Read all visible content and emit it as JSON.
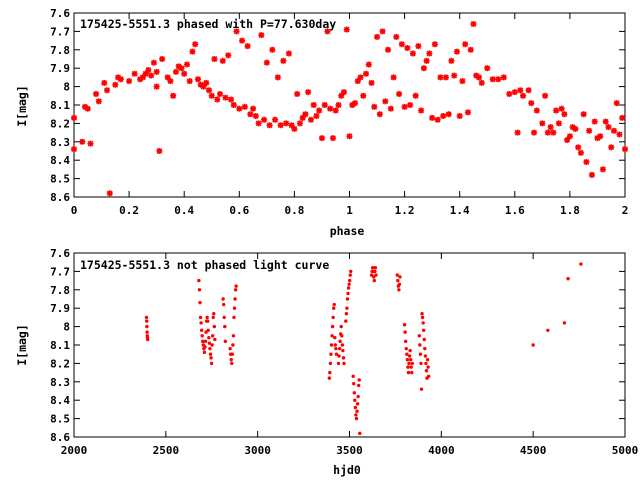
{
  "colors": {
    "points": "#ff0000",
    "axes": "#000000",
    "background": "#ffffff"
  },
  "chart_data": [
    {
      "type": "scatter",
      "title": "175425-5551.3 phased with P=77.630day",
      "xlabel": "phase",
      "ylabel": "I[mag]",
      "xlim": [
        0,
        2
      ],
      "ylim": [
        7.6,
        8.6
      ],
      "y_inverted": true,
      "grid": false,
      "marker": "star",
      "xticks": [
        "0",
        "0.2",
        "0.4",
        "0.6",
        "0.8",
        "1",
        "1.2",
        "1.4",
        "1.6",
        "1.8",
        "2"
      ],
      "yticks": [
        "7.6",
        "7.7",
        "7.8",
        "7.9",
        "8",
        "8.1",
        "8.2",
        "8.3",
        "8.4",
        "8.5",
        "8.6"
      ],
      "points": [
        [
          0.0,
          8.17
        ],
        [
          0.0,
          8.34
        ],
        [
          0.03,
          8.3
        ],
        [
          0.04,
          8.11
        ],
        [
          0.05,
          8.12
        ],
        [
          0.06,
          8.31
        ],
        [
          0.08,
          8.04
        ],
        [
          0.09,
          8.08
        ],
        [
          0.11,
          7.98
        ],
        [
          0.12,
          8.02
        ],
        [
          0.13,
          8.58
        ],
        [
          0.15,
          7.99
        ],
        [
          0.16,
          7.95
        ],
        [
          0.17,
          7.96
        ],
        [
          0.2,
          7.97
        ],
        [
          0.22,
          7.93
        ],
        [
          0.24,
          7.96
        ],
        [
          0.25,
          7.95
        ],
        [
          0.26,
          7.93
        ],
        [
          0.27,
          7.91
        ],
        [
          0.28,
          7.94
        ],
        [
          0.29,
          7.87
        ],
        [
          0.3,
          7.92
        ],
        [
          0.3,
          8.0
        ],
        [
          0.31,
          8.35
        ],
        [
          0.32,
          7.85
        ],
        [
          0.34,
          7.95
        ],
        [
          0.35,
          7.97
        ],
        [
          0.36,
          8.05
        ],
        [
          0.37,
          7.92
        ],
        [
          0.38,
          7.89
        ],
        [
          0.39,
          7.9
        ],
        [
          0.4,
          7.93
        ],
        [
          0.41,
          7.88
        ],
        [
          0.42,
          7.97
        ],
        [
          0.43,
          7.81
        ],
        [
          0.44,
          7.77
        ],
        [
          0.45,
          7.96
        ],
        [
          0.46,
          7.99
        ],
        [
          0.47,
          8.0
        ],
        [
          0.48,
          7.98
        ],
        [
          0.49,
          8.02
        ],
        [
          0.5,
          8.05
        ],
        [
          0.51,
          7.85
        ],
        [
          0.52,
          8.07
        ],
        [
          0.53,
          8.04
        ],
        [
          0.54,
          7.86
        ],
        [
          0.55,
          8.06
        ],
        [
          0.56,
          7.83
        ],
        [
          0.57,
          8.07
        ],
        [
          0.58,
          8.1
        ],
        [
          0.59,
          7.7
        ],
        [
          0.6,
          8.12
        ],
        [
          0.61,
          7.75
        ],
        [
          0.62,
          8.11
        ],
        [
          0.63,
          7.78
        ],
        [
          0.64,
          8.15
        ],
        [
          0.65,
          8.12
        ],
        [
          0.66,
          8.16
        ],
        [
          0.67,
          8.2
        ],
        [
          0.68,
          7.72
        ],
        [
          0.69,
          8.18
        ],
        [
          0.7,
          7.87
        ],
        [
          0.71,
          8.21
        ],
        [
          0.72,
          7.8
        ],
        [
          0.73,
          8.18
        ],
        [
          0.74,
          7.95
        ],
        [
          0.75,
          8.21
        ],
        [
          0.76,
          7.86
        ],
        [
          0.77,
          8.2
        ],
        [
          0.78,
          7.82
        ],
        [
          0.79,
          8.21
        ],
        [
          0.8,
          8.23
        ],
        [
          0.81,
          8.04
        ],
        [
          0.82,
          8.2
        ],
        [
          0.83,
          8.17
        ],
        [
          0.84,
          8.15
        ],
        [
          0.85,
          8.03
        ],
        [
          0.86,
          8.18
        ],
        [
          0.87,
          8.1
        ],
        [
          0.88,
          8.16
        ],
        [
          0.89,
          8.13
        ],
        [
          0.9,
          8.28
        ],
        [
          0.91,
          8.1
        ],
        [
          0.92,
          7.7
        ],
        [
          0.93,
          8.12
        ],
        [
          0.94,
          8.28
        ],
        [
          0.95,
          8.13
        ],
        [
          0.96,
          8.1
        ],
        [
          0.97,
          8.05
        ],
        [
          0.98,
          8.03
        ],
        [
          0.99,
          7.69
        ],
        [
          1.0,
          8.27
        ],
        [
          1.01,
          8.1
        ],
        [
          1.02,
          8.09
        ],
        [
          1.03,
          7.97
        ],
        [
          1.04,
          7.95
        ],
        [
          1.05,
          8.05
        ],
        [
          1.06,
          7.93
        ],
        [
          1.07,
          7.88
        ],
        [
          1.08,
          7.98
        ],
        [
          1.09,
          8.11
        ],
        [
          1.1,
          7.73
        ],
        [
          1.11,
          8.15
        ],
        [
          1.12,
          7.7
        ],
        [
          1.13,
          8.08
        ],
        [
          1.14,
          7.8
        ],
        [
          1.15,
          8.12
        ],
        [
          1.16,
          7.95
        ],
        [
          1.17,
          7.73
        ],
        [
          1.18,
          8.04
        ],
        [
          1.19,
          7.77
        ],
        [
          1.2,
          8.11
        ],
        [
          1.21,
          7.79
        ],
        [
          1.22,
          8.1
        ],
        [
          1.23,
          7.82
        ],
        [
          1.24,
          8.05
        ],
        [
          1.25,
          7.78
        ],
        [
          1.26,
          8.13
        ],
        [
          1.27,
          7.9
        ],
        [
          1.28,
          7.86
        ],
        [
          1.29,
          7.82
        ],
        [
          1.3,
          8.17
        ],
        [
          1.31,
          7.77
        ],
        [
          1.32,
          8.18
        ],
        [
          1.33,
          7.95
        ],
        [
          1.34,
          8.16
        ],
        [
          1.35,
          7.95
        ],
        [
          1.36,
          8.15
        ],
        [
          1.37,
          7.86
        ],
        [
          1.38,
          7.94
        ],
        [
          1.39,
          7.81
        ],
        [
          1.4,
          8.16
        ],
        [
          1.41,
          7.97
        ],
        [
          1.42,
          7.77
        ],
        [
          1.43,
          8.14
        ],
        [
          1.44,
          7.8
        ],
        [
          1.45,
          7.66
        ],
        [
          1.46,
          7.94
        ],
        [
          1.47,
          7.95
        ],
        [
          1.48,
          7.98
        ],
        [
          1.5,
          7.9
        ],
        [
          1.52,
          7.96
        ],
        [
          1.54,
          7.96
        ],
        [
          1.56,
          7.95
        ],
        [
          1.58,
          8.04
        ],
        [
          1.6,
          8.03
        ],
        [
          1.61,
          8.25
        ],
        [
          1.62,
          8.02
        ],
        [
          1.63,
          8.05
        ],
        [
          1.65,
          8.02
        ],
        [
          1.66,
          8.09
        ],
        [
          1.67,
          8.25
        ],
        [
          1.68,
          8.13
        ],
        [
          1.7,
          8.2
        ],
        [
          1.71,
          8.05
        ],
        [
          1.72,
          8.25
        ],
        [
          1.73,
          8.22
        ],
        [
          1.74,
          8.25
        ],
        [
          1.75,
          8.13
        ],
        [
          1.76,
          8.2
        ],
        [
          1.77,
          8.12
        ],
        [
          1.78,
          8.15
        ],
        [
          1.79,
          8.29
        ],
        [
          1.8,
          8.27
        ],
        [
          1.81,
          8.22
        ],
        [
          1.82,
          8.23
        ],
        [
          1.83,
          8.33
        ],
        [
          1.84,
          8.36
        ],
        [
          1.85,
          8.15
        ],
        [
          1.86,
          8.41
        ],
        [
          1.87,
          8.24
        ],
        [
          1.88,
          8.48
        ],
        [
          1.89,
          8.19
        ],
        [
          1.9,
          8.28
        ],
        [
          1.91,
          8.27
        ],
        [
          1.92,
          8.45
        ],
        [
          1.93,
          8.19
        ],
        [
          1.94,
          8.22
        ],
        [
          1.95,
          8.33
        ],
        [
          1.96,
          8.24
        ],
        [
          1.97,
          8.09
        ],
        [
          1.98,
          8.26
        ],
        [
          1.99,
          8.17
        ],
        [
          2.0,
          8.34
        ]
      ]
    },
    {
      "type": "scatter",
      "title": "175425-5551.3 not phased light curve",
      "xlabel": "hjd0",
      "ylabel": "I[mag]",
      "xlim": [
        2000,
        5000
      ],
      "ylim": [
        7.6,
        8.6
      ],
      "y_inverted": true,
      "grid": false,
      "marker": "dot",
      "xticks": [
        "2000",
        "2500",
        "3000",
        "3500",
        "4000",
        "4500",
        "5000"
      ],
      "yticks": [
        "7.6",
        "7.7",
        "7.8",
        "7.9",
        "8",
        "8.1",
        "8.2",
        "8.3",
        "8.4",
        "8.5",
        "8.6"
      ],
      "points": [
        [
          2395,
          7.95
        ],
        [
          2396,
          7.97
        ],
        [
          2397,
          8.0
        ],
        [
          2398,
          8.03
        ],
        [
          2399,
          8.05
        ],
        [
          2400,
          8.06
        ],
        [
          2401,
          8.07
        ],
        [
          2680,
          7.75
        ],
        [
          2683,
          7.8
        ],
        [
          2686,
          7.87
        ],
        [
          2689,
          7.95
        ],
        [
          2692,
          7.98
        ],
        [
          2695,
          8.02
        ],
        [
          2698,
          8.05
        ],
        [
          2701,
          8.08
        ],
        [
          2704,
          8.1
        ],
        [
          2707,
          8.12
        ],
        [
          2710,
          8.14
        ],
        [
          2713,
          8.11
        ],
        [
          2716,
          8.08
        ],
        [
          2719,
          8.03
        ],
        [
          2722,
          7.97
        ],
        [
          2725,
          7.95
        ],
        [
          2728,
          7.97
        ],
        [
          2731,
          8.02
        ],
        [
          2734,
          8.06
        ],
        [
          2737,
          8.09
        ],
        [
          2740,
          8.12
        ],
        [
          2743,
          8.15
        ],
        [
          2746,
          8.17
        ],
        [
          2749,
          8.2
        ],
        [
          2752,
          8.1
        ],
        [
          2755,
          8.05
        ],
        [
          2758,
          7.95
        ],
        [
          2761,
          7.93
        ],
        [
          2764,
          8.0
        ],
        [
          2767,
          8.07
        ],
        [
          2812,
          7.85
        ],
        [
          2815,
          7.88
        ],
        [
          2818,
          7.95
        ],
        [
          2821,
          8.0
        ],
        [
          2824,
          8.08
        ],
        [
          2850,
          8.12
        ],
        [
          2853,
          8.15
        ],
        [
          2856,
          8.18
        ],
        [
          2859,
          8.2
        ],
        [
          2862,
          8.15
        ],
        [
          2865,
          8.1
        ],
        [
          2868,
          8.05
        ],
        [
          2871,
          7.95
        ],
        [
          2874,
          7.9
        ],
        [
          2877,
          7.85
        ],
        [
          2880,
          7.8
        ],
        [
          2883,
          7.78
        ],
        [
          3390,
          8.28
        ],
        [
          3393,
          8.25
        ],
        [
          3396,
          8.2
        ],
        [
          3399,
          8.15
        ],
        [
          3402,
          8.1
        ],
        [
          3405,
          8.05
        ],
        [
          3408,
          8.0
        ],
        [
          3411,
          7.95
        ],
        [
          3414,
          7.9
        ],
        [
          3417,
          7.88
        ],
        [
          3420,
          8.06
        ],
        [
          3423,
          8.1
        ],
        [
          3426,
          8.12
        ],
        [
          3429,
          8.15
        ],
        [
          3440,
          8.2
        ],
        [
          3443,
          8.16
        ],
        [
          3446,
          8.12
        ],
        [
          3449,
          8.08
        ],
        [
          3452,
          8.04
        ],
        [
          3455,
          8.0
        ],
        [
          3458,
          8.05
        ],
        [
          3461,
          8.1
        ],
        [
          3464,
          8.13
        ],
        [
          3467,
          8.17
        ],
        [
          3470,
          8.2
        ],
        [
          3480,
          7.97
        ],
        [
          3483,
          7.93
        ],
        [
          3486,
          7.9
        ],
        [
          3489,
          7.85
        ],
        [
          3492,
          7.82
        ],
        [
          3495,
          7.79
        ],
        [
          3498,
          7.77
        ],
        [
          3501,
          7.75
        ],
        [
          3504,
          7.72
        ],
        [
          3507,
          7.7
        ],
        [
          3520,
          8.27
        ],
        [
          3523,
          8.31
        ],
        [
          3526,
          8.36
        ],
        [
          3529,
          8.4
        ],
        [
          3532,
          8.44
        ],
        [
          3535,
          8.48
        ],
        [
          3538,
          8.5
        ],
        [
          3541,
          8.46
        ],
        [
          3544,
          8.42
        ],
        [
          3547,
          8.38
        ],
        [
          3550,
          8.32
        ],
        [
          3553,
          8.29
        ],
        [
          3556,
          8.58
        ],
        [
          3620,
          7.72
        ],
        [
          3623,
          7.7
        ],
        [
          3626,
          7.68
        ],
        [
          3629,
          7.7
        ],
        [
          3632,
          7.73
        ],
        [
          3635,
          7.75
        ],
        [
          3638,
          7.7
        ],
        [
          3641,
          7.68
        ],
        [
          3644,
          7.72
        ],
        [
          3760,
          7.72
        ],
        [
          3763,
          7.75
        ],
        [
          3766,
          7.78
        ],
        [
          3769,
          7.8
        ],
        [
          3772,
          7.77
        ],
        [
          3775,
          7.73
        ],
        [
          3800,
          7.99
        ],
        [
          3803,
          8.03
        ],
        [
          3806,
          8.08
        ],
        [
          3809,
          8.12
        ],
        [
          3812,
          8.15
        ],
        [
          3815,
          8.18
        ],
        [
          3818,
          8.22
        ],
        [
          3821,
          8.25
        ],
        [
          3824,
          8.2
        ],
        [
          3827,
          8.16
        ],
        [
          3830,
          8.13
        ],
        [
          3833,
          8.18
        ],
        [
          3836,
          8.22
        ],
        [
          3839,
          8.25
        ],
        [
          3842,
          8.2
        ],
        [
          3880,
          8.05
        ],
        [
          3883,
          8.1
        ],
        [
          3886,
          8.15
        ],
        [
          3889,
          8.2
        ],
        [
          3892,
          8.34
        ],
        [
          3895,
          7.93
        ],
        [
          3898,
          7.95
        ],
        [
          3901,
          7.98
        ],
        [
          3904,
          8.02
        ],
        [
          3907,
          8.07
        ],
        [
          3910,
          8.12
        ],
        [
          3913,
          8.16
        ],
        [
          3916,
          8.2
        ],
        [
          3919,
          8.24
        ],
        [
          3922,
          8.28
        ],
        [
          3925,
          8.18
        ],
        [
          3928,
          8.22
        ],
        [
          3931,
          8.27
        ],
        [
          4500,
          8.1
        ],
        [
          4580,
          8.02
        ],
        [
          4670,
          7.98
        ],
        [
          4690,
          7.74
        ],
        [
          4760,
          7.66
        ]
      ]
    }
  ]
}
